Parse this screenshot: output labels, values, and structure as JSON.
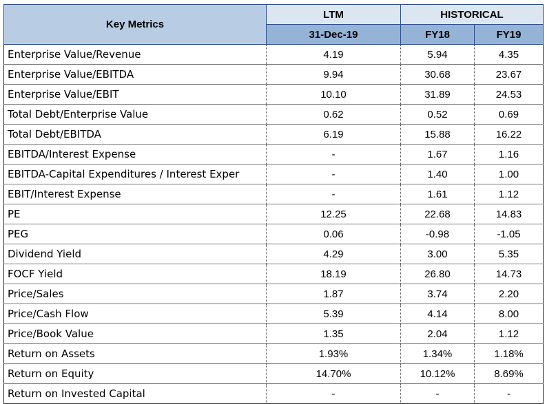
{
  "header": {
    "key_metrics": "Key Metrics",
    "ltm": "LTM",
    "historical": "HISTORICAL",
    "ltm_date": "31-Dec-19",
    "fy18": "FY18",
    "fy19": "FY19"
  },
  "rows": [
    {
      "metric": "Enterprise Value/Revenue",
      "ltm": "4.19",
      "fy18": "5.94",
      "fy19": "4.35"
    },
    {
      "metric": "Enterprise Value/EBITDA",
      "ltm": "9.94",
      "fy18": "30.68",
      "fy19": "23.67"
    },
    {
      "metric": "Enterprise Value/EBIT",
      "ltm": "10.10",
      "fy18": "31.89",
      "fy19": "24.53"
    },
    {
      "metric": "Total Debt/Enterprise Value",
      "ltm": "0.62",
      "fy18": "0.52",
      "fy19": "0.69"
    },
    {
      "metric": "Total Debt/EBITDA",
      "ltm": "6.19",
      "fy18": "15.88",
      "fy19": "16.22"
    },
    {
      "metric": "EBITDA/Interest Expense",
      "ltm": "-",
      "fy18": "1.67",
      "fy19": "1.16"
    },
    {
      "metric": "EBITDA-Capital Expenditures / Interest Exper",
      "ltm": "-",
      "fy18": "1.40",
      "fy19": "1.00"
    },
    {
      "metric": "EBIT/Interest Expense",
      "ltm": "-",
      "fy18": "1.61",
      "fy19": "1.12"
    },
    {
      "metric": "PE",
      "ltm": "12.25",
      "fy18": "22.68",
      "fy19": "14.83"
    },
    {
      "metric": "PEG",
      "ltm": "0.06",
      "fy18": "-0.98",
      "fy19": "-1.05"
    },
    {
      "metric": "Dividend Yield",
      "ltm": "4.29",
      "fy18": "3.00",
      "fy19": "5.35"
    },
    {
      "metric": "FOCF Yield",
      "ltm": "18.19",
      "fy18": "26.80",
      "fy19": "14.73"
    },
    {
      "metric": "Price/Sales",
      "ltm": "1.87",
      "fy18": "3.74",
      "fy19": "2.20"
    },
    {
      "metric": "Price/Cash Flow",
      "ltm": "5.39",
      "fy18": "4.14",
      "fy19": "8.00"
    },
    {
      "metric": "Price/Book Value",
      "ltm": "1.35",
      "fy18": "2.04",
      "fy19": "1.12"
    },
    {
      "metric": "Return on Assets",
      "ltm": "1.93%",
      "fy18": "1.34%",
      "fy19": "1.18%"
    },
    {
      "metric": "Return on Equity",
      "ltm": "14.70%",
      "fy18": "10.12%",
      "fy19": "8.69%"
    },
    {
      "metric": "Return on Invested Capital",
      "ltm": "-",
      "fy18": "-",
      "fy19": "-"
    }
  ],
  "colors": {
    "header_dark": "#95b3d7",
    "header_light": "#dce6f1",
    "key_metrics_bg": "#b8cce4"
  }
}
